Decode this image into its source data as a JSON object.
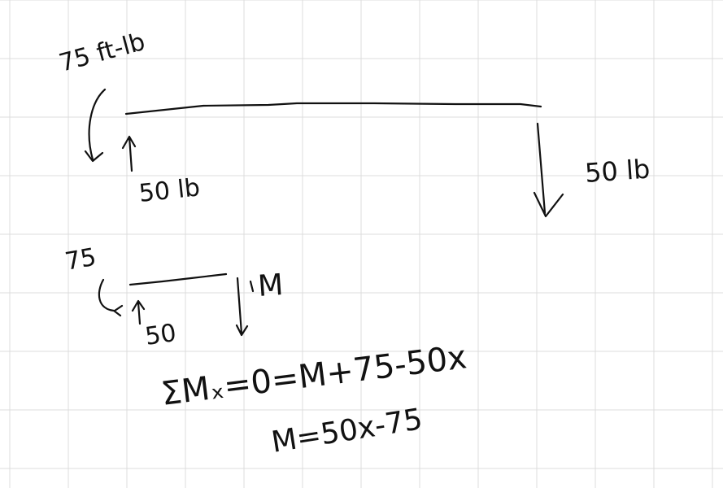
{
  "colors": {
    "background": "#ffffff",
    "grid": "#dcdcdc",
    "ink": "#111111"
  },
  "labels": {
    "applied_moment": "75 ft-lb",
    "support_force": "50 lb",
    "end_load": "50 lb",
    "section_moment": "75",
    "section_force": "50",
    "section_internal": "M"
  },
  "equations": {
    "moment_sum": "ΣMₓ=0=M+75-50x",
    "moment_result": "M=50x-75"
  }
}
